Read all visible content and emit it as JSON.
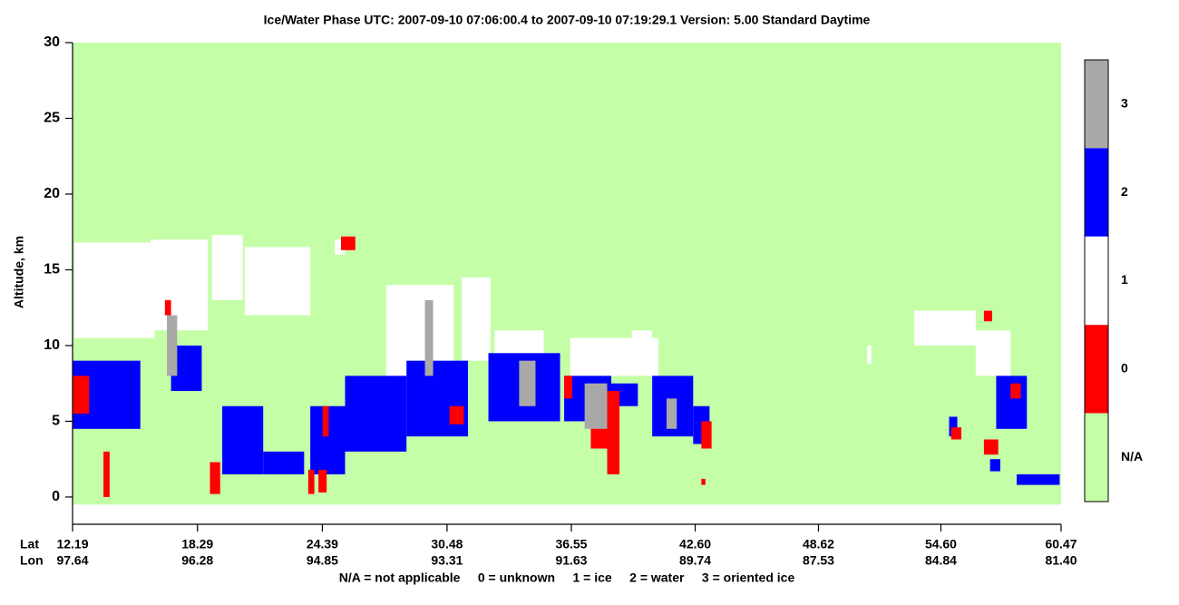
{
  "chart_data": {
    "type": "curtain",
    "title": "Ice/Water Phase    UTC:  2007-09-10   07:06:00.4  to  2007-09-10   07:19:29.1    Version: 5.00  Standard Daytime",
    "ylabel": "Altitude, km",
    "ylim": [
      -1.8,
      30
    ],
    "yticks": [
      0,
      5,
      10,
      15,
      20,
      25,
      30
    ],
    "xlim": [
      12.19,
      60.47
    ],
    "xticks": [
      12.19,
      18.29,
      24.39,
      30.48,
      36.55,
      {
        "value": 42.6,
        "label": "42.60"
      },
      48.62,
      {
        "value": 54.6,
        "label": "54.60"
      },
      60.47
    ],
    "row_labels": [
      "Lat",
      "Lon"
    ],
    "lon_labels": [
      "97.64",
      "96.28",
      "94.85",
      "93.31",
      "91.63",
      "89.74",
      "87.53",
      "84.84",
      "81.40"
    ],
    "classes": [
      {
        "label": "3",
        "color": "#a8a8a8"
      },
      {
        "label": "2",
        "color": "#0000ff"
      },
      {
        "label": "1",
        "color": "#ffffff"
      },
      {
        "label": "0",
        "color": "#ff0000"
      },
      {
        "label": "N/A",
        "color": "#c4ffa8"
      }
    ],
    "footnote": "N/A = not applicable     0 = unknown     1 = ice     2 = water     3 = oriented ice",
    "patches": [
      {
        "lat": [
          12.19,
          60.47
        ],
        "alt": [
          -0.5,
          30
        ],
        "phase": "N/A"
      },
      {
        "lat": [
          12.28,
          16.2
        ],
        "alt": [
          10.5,
          16.8
        ],
        "phase": "1"
      },
      {
        "lat": [
          16.0,
          18.8
        ],
        "alt": [
          11,
          17
        ],
        "phase": "1"
      },
      {
        "lat": [
          19.0,
          20.5
        ],
        "alt": [
          13,
          17.3
        ],
        "phase": "1"
      },
      {
        "lat": [
          20.6,
          23.8
        ],
        "alt": [
          12,
          16.5
        ],
        "phase": "1"
      },
      {
        "lat": [
          27.5,
          30.8
        ],
        "alt": [
          8,
          14
        ],
        "phase": "1"
      },
      {
        "lat": [
          31.2,
          32.6
        ],
        "alt": [
          9,
          14.5
        ],
        "phase": "1"
      },
      {
        "lat": [
          32.8,
          35.2
        ],
        "alt": [
          6,
          11
        ],
        "phase": "1"
      },
      {
        "lat": [
          36.5,
          40.8
        ],
        "alt": [
          8,
          10.5
        ],
        "phase": "1"
      },
      {
        "lat": [
          39.5,
          40.5
        ],
        "alt": [
          10,
          11
        ],
        "phase": "1"
      },
      {
        "lat": [
          51.0,
          51.2
        ],
        "alt": [
          8.8,
          10
        ],
        "phase": "1"
      },
      {
        "lat": [
          53.3,
          56.3
        ],
        "alt": [
          10,
          12.3
        ],
        "phase": "1"
      },
      {
        "lat": [
          56.3,
          58.0
        ],
        "alt": [
          8,
          11
        ],
        "phase": "1"
      },
      {
        "lat": [
          25.0,
          25.5
        ],
        "alt": [
          16,
          17
        ],
        "phase": "1"
      },
      {
        "lat": [
          12.2,
          15.5
        ],
        "alt": [
          4.5,
          9
        ],
        "phase": "2"
      },
      {
        "lat": [
          17.0,
          18.5
        ],
        "alt": [
          7,
          10
        ],
        "phase": "2"
      },
      {
        "lat": [
          19.5,
          21.5
        ],
        "alt": [
          1.5,
          6
        ],
        "phase": "2"
      },
      {
        "lat": [
          21.5,
          23.5
        ],
        "alt": [
          1.5,
          3
        ],
        "phase": "2"
      },
      {
        "lat": [
          23.8,
          25.5
        ],
        "alt": [
          1.5,
          6
        ],
        "phase": "2"
      },
      {
        "lat": [
          25.5,
          28.5
        ],
        "alt": [
          3,
          8
        ],
        "phase": "2"
      },
      {
        "lat": [
          28.5,
          31.5
        ],
        "alt": [
          4,
          9
        ],
        "phase": "2"
      },
      {
        "lat": [
          32.5,
          36.0
        ],
        "alt": [
          5,
          9.5
        ],
        "phase": "2"
      },
      {
        "lat": [
          36.2,
          38.5
        ],
        "alt": [
          5,
          8
        ],
        "phase": "2"
      },
      {
        "lat": [
          38.5,
          39.8
        ],
        "alt": [
          6,
          7.5
        ],
        "phase": "2"
      },
      {
        "lat": [
          40.5,
          42.5
        ],
        "alt": [
          4,
          8
        ],
        "phase": "2"
      },
      {
        "lat": [
          42.5,
          43.3
        ],
        "alt": [
          3.5,
          6
        ],
        "phase": "2"
      },
      {
        "lat": [
          55.0,
          55.4
        ],
        "alt": [
          4,
          5.3
        ],
        "phase": "2"
      },
      {
        "lat": [
          57.0,
          57.5
        ],
        "alt": [
          1.7,
          2.5
        ],
        "phase": "2"
      },
      {
        "lat": [
          58.3,
          60.4
        ],
        "alt": [
          0.8,
          1.5
        ],
        "phase": "2"
      },
      {
        "lat": [
          57.3,
          58.8
        ],
        "alt": [
          4.5,
          8
        ],
        "phase": "2"
      },
      {
        "lat": [
          12.2,
          13.0
        ],
        "alt": [
          5.5,
          8
        ],
        "phase": "0"
      },
      {
        "lat": [
          13.7,
          14.0
        ],
        "alt": [
          0,
          3
        ],
        "phase": "0"
      },
      {
        "lat": [
          18.9,
          19.4
        ],
        "alt": [
          0.2,
          2.3
        ],
        "phase": "0"
      },
      {
        "lat": [
          23.7,
          24.0
        ],
        "alt": [
          0.2,
          1.8
        ],
        "phase": "0"
      },
      {
        "lat": [
          24.2,
          24.6
        ],
        "alt": [
          0.3,
          1.8
        ],
        "phase": "0"
      },
      {
        "lat": [
          24.4,
          24.7
        ],
        "alt": [
          4,
          6
        ],
        "phase": "0"
      },
      {
        "lat": [
          25.3,
          26.0
        ],
        "alt": [
          16.3,
          17.2
        ],
        "phase": "0"
      },
      {
        "lat": [
          30.6,
          31.3
        ],
        "alt": [
          4.8,
          6
        ],
        "phase": "0"
      },
      {
        "lat": [
          36.2,
          36.6
        ],
        "alt": [
          6.5,
          8
        ],
        "phase": "0"
      },
      {
        "lat": [
          37.5,
          38.3
        ],
        "alt": [
          3.2,
          5
        ],
        "phase": "0"
      },
      {
        "lat": [
          38.3,
          38.9
        ],
        "alt": [
          1.5,
          7
        ],
        "phase": "0"
      },
      {
        "lat": [
          42.9,
          43.4
        ],
        "alt": [
          3.2,
          5
        ],
        "phase": "0"
      },
      {
        "lat": [
          42.9,
          43.1
        ],
        "alt": [
          0.8,
          1.2
        ],
        "phase": "0"
      },
      {
        "lat": [
          55.1,
          55.6
        ],
        "alt": [
          3.8,
          4.6
        ],
        "phase": "0"
      },
      {
        "lat": [
          56.7,
          57.4
        ],
        "alt": [
          2.8,
          3.8
        ],
        "phase": "0"
      },
      {
        "lat": [
          56.7,
          57.1
        ],
        "alt": [
          11.6,
          12.3
        ],
        "phase": "0"
      },
      {
        "lat": [
          58.0,
          58.5
        ],
        "alt": [
          6.5,
          7.5
        ],
        "phase": "0"
      },
      {
        "lat": [
          16.7,
          17.0
        ],
        "alt": [
          12,
          13
        ],
        "phase": "0"
      },
      {
        "lat": [
          16.8,
          17.3
        ],
        "alt": [
          8,
          12
        ],
        "phase": "3"
      },
      {
        "lat": [
          29.4,
          29.8
        ],
        "alt": [
          8,
          13
        ],
        "phase": "3"
      },
      {
        "lat": [
          34.0,
          34.8
        ],
        "alt": [
          6,
          9
        ],
        "phase": "3"
      },
      {
        "lat": [
          37.2,
          38.3
        ],
        "alt": [
          4.5,
          7.5
        ],
        "phase": "3"
      },
      {
        "lat": [
          41.2,
          41.7
        ],
        "alt": [
          4.5,
          6.5
        ],
        "phase": "3"
      }
    ]
  }
}
